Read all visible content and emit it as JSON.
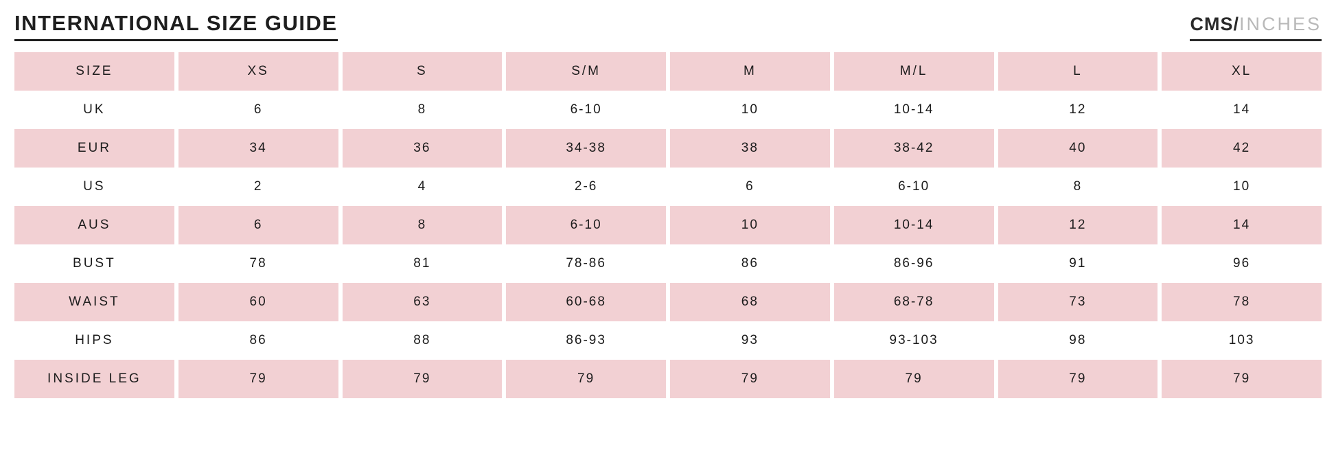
{
  "page": {
    "title": "INTERNATIONAL SIZE GUIDE",
    "units": {
      "primary": "CMS",
      "separator": "/",
      "secondary": "INCHES"
    }
  },
  "table": {
    "header": [
      "SIZE",
      "XS",
      "S",
      "S/M",
      "M",
      "M/L",
      "L",
      "XL"
    ],
    "rows": [
      {
        "label": "UK",
        "values": [
          "6",
          "8",
          "6-10",
          "10",
          "10-14",
          "12",
          "14"
        ]
      },
      {
        "label": "EUR",
        "values": [
          "34",
          "36",
          "34-38",
          "38",
          "38-42",
          "40",
          "42"
        ]
      },
      {
        "label": "US",
        "values": [
          "2",
          "4",
          "2-6",
          "6",
          "6-10",
          "8",
          "10"
        ]
      },
      {
        "label": "AUS",
        "values": [
          "6",
          "8",
          "6-10",
          "10",
          "10-14",
          "12",
          "14"
        ]
      },
      {
        "label": "BUST",
        "values": [
          "78",
          "81",
          "78-86",
          "86",
          "86-96",
          "91",
          "96"
        ]
      },
      {
        "label": "WAIST",
        "values": [
          "60",
          "63",
          "60-68",
          "68",
          "68-78",
          "73",
          "78"
        ]
      },
      {
        "label": "HIPS",
        "values": [
          "86",
          "88",
          "86-93",
          "93",
          "93-103",
          "98",
          "103"
        ]
      },
      {
        "label": "INSIDE LEG",
        "values": [
          "79",
          "79",
          "79",
          "79",
          "79",
          "79",
          "79"
        ]
      }
    ],
    "colors": {
      "row_pink": "#f2d0d3",
      "text": "#1c1c1c",
      "inches_gray": "#b9b9b9"
    }
  }
}
